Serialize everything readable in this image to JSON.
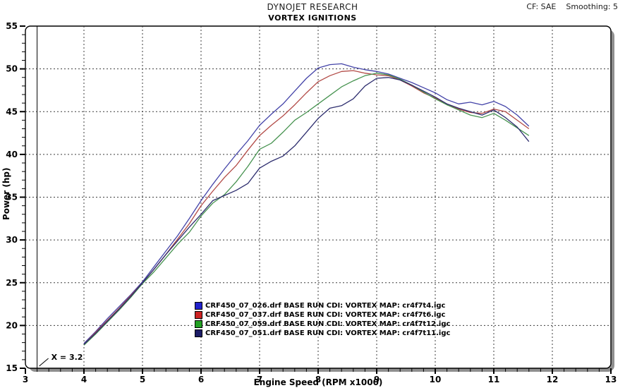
{
  "header": {
    "company": "DYNOJET RESEARCH",
    "title": "VORTEX IGNITIONS",
    "correction": "CF: SAE",
    "smoothing": "Smoothing: 5"
  },
  "chart_data": {
    "type": "line",
    "title": "VORTEX IGNITIONS",
    "xlabel": "Engine Speed (RPM x1000)",
    "ylabel": "Power (hp)",
    "xlim": [
      3,
      13
    ],
    "ylim": [
      15,
      55
    ],
    "x_ticks": [
      3,
      4,
      5,
      6,
      7,
      8,
      9,
      10,
      11,
      12,
      13
    ],
    "y_ticks": [
      15,
      20,
      25,
      30,
      35,
      40,
      45,
      50,
      55
    ],
    "x_minor_step": 0.2,
    "y_minor_step": 1,
    "grid": "dashed",
    "legend_position": "bottom-center-inside",
    "cursor": {
      "x": 3.2,
      "label": "X = 3.2"
    },
    "colors": {
      "grid": "#3c3c3c",
      "frame": "#000000",
      "shadow": "#8f8f8f",
      "cursor": "#000000",
      "background": "#ffffff"
    },
    "series": [
      {
        "name": "CRF450_07_026.drf BASE RUN CDI: VORTEX MAP: cr4f7t4.igc",
        "color": "#4343a8",
        "swatch": "#2222cc",
        "points": [
          [
            4.0,
            17.9
          ],
          [
            4.2,
            19.3
          ],
          [
            4.4,
            20.8
          ],
          [
            4.6,
            22.2
          ],
          [
            4.8,
            23.6
          ],
          [
            5.0,
            25.1
          ],
          [
            5.2,
            26.9
          ],
          [
            5.4,
            28.7
          ],
          [
            5.6,
            30.5
          ],
          [
            5.8,
            32.5
          ],
          [
            6.0,
            34.6
          ],
          [
            6.2,
            36.5
          ],
          [
            6.4,
            38.3
          ],
          [
            6.6,
            40.0
          ],
          [
            6.8,
            41.6
          ],
          [
            7.0,
            43.4
          ],
          [
            7.2,
            44.7
          ],
          [
            7.4,
            45.9
          ],
          [
            7.6,
            47.4
          ],
          [
            7.8,
            48.9
          ],
          [
            8.0,
            50.1
          ],
          [
            8.2,
            50.5
          ],
          [
            8.4,
            50.6
          ],
          [
            8.6,
            50.2
          ],
          [
            8.8,
            49.9
          ],
          [
            9.0,
            49.7
          ],
          [
            9.2,
            49.4
          ],
          [
            9.4,
            48.9
          ],
          [
            9.6,
            48.4
          ],
          [
            9.8,
            47.8
          ],
          [
            10.0,
            47.2
          ],
          [
            10.2,
            46.4
          ],
          [
            10.4,
            45.9
          ],
          [
            10.6,
            46.1
          ],
          [
            10.8,
            45.8
          ],
          [
            11.0,
            46.2
          ],
          [
            11.2,
            45.6
          ],
          [
            11.4,
            44.6
          ],
          [
            11.6,
            43.3
          ]
        ]
      },
      {
        "name": "CRF450_07_037.drf BASE RUN CDI: VORTEX MAP: cr4f7t6.igc",
        "color": "#b24a46",
        "swatch": "#cc2222",
        "points": [
          [
            4.0,
            17.8
          ],
          [
            4.2,
            19.2
          ],
          [
            4.4,
            20.6
          ],
          [
            4.6,
            22.0
          ],
          [
            4.8,
            23.5
          ],
          [
            5.0,
            25.0
          ],
          [
            5.2,
            26.6
          ],
          [
            5.4,
            28.3
          ],
          [
            5.6,
            30.1
          ],
          [
            5.8,
            31.9
          ],
          [
            6.0,
            34.0
          ],
          [
            6.2,
            35.7
          ],
          [
            6.4,
            37.3
          ],
          [
            6.6,
            38.7
          ],
          [
            6.8,
            40.5
          ],
          [
            7.0,
            42.2
          ],
          [
            7.2,
            43.4
          ],
          [
            7.4,
            44.5
          ],
          [
            7.6,
            45.8
          ],
          [
            7.8,
            47.2
          ],
          [
            8.0,
            48.5
          ],
          [
            8.2,
            49.2
          ],
          [
            8.4,
            49.7
          ],
          [
            8.6,
            49.8
          ],
          [
            8.8,
            49.5
          ],
          [
            9.0,
            49.3
          ],
          [
            9.2,
            49.2
          ],
          [
            9.4,
            48.7
          ],
          [
            9.6,
            48.0
          ],
          [
            9.8,
            47.2
          ],
          [
            10.0,
            46.6
          ],
          [
            10.2,
            45.9
          ],
          [
            10.4,
            45.3
          ],
          [
            10.6,
            44.9
          ],
          [
            10.8,
            44.8
          ],
          [
            11.0,
            45.3
          ],
          [
            11.2,
            45.0
          ],
          [
            11.4,
            44.0
          ],
          [
            11.6,
            43.0
          ]
        ]
      },
      {
        "name": "CRF450_07_059.drf BASE RUN CDI: VORTEX MAP: cr4f7t12.igc",
        "color": "#479350",
        "swatch": "#22a022",
        "points": [
          [
            4.0,
            17.7
          ],
          [
            4.2,
            19.0
          ],
          [
            4.4,
            20.4
          ],
          [
            4.6,
            21.8
          ],
          [
            4.8,
            23.3
          ],
          [
            5.0,
            24.9
          ],
          [
            5.2,
            26.3
          ],
          [
            5.4,
            27.9
          ],
          [
            5.6,
            29.5
          ],
          [
            5.8,
            30.9
          ],
          [
            6.0,
            32.8
          ],
          [
            6.2,
            34.3
          ],
          [
            6.4,
            35.3
          ],
          [
            6.6,
            36.8
          ],
          [
            6.8,
            38.6
          ],
          [
            7.0,
            40.6
          ],
          [
            7.2,
            41.3
          ],
          [
            7.4,
            42.6
          ],
          [
            7.6,
            44.0
          ],
          [
            7.8,
            44.9
          ],
          [
            8.0,
            45.9
          ],
          [
            8.2,
            46.9
          ],
          [
            8.4,
            47.9
          ],
          [
            8.6,
            48.6
          ],
          [
            8.8,
            49.2
          ],
          [
            9.0,
            49.5
          ],
          [
            9.2,
            49.3
          ],
          [
            9.4,
            48.8
          ],
          [
            9.6,
            48.1
          ],
          [
            9.8,
            47.3
          ],
          [
            10.0,
            46.5
          ],
          [
            10.2,
            45.8
          ],
          [
            10.4,
            45.2
          ],
          [
            10.6,
            44.6
          ],
          [
            10.8,
            44.3
          ],
          [
            11.0,
            44.8
          ],
          [
            11.2,
            44.0
          ],
          [
            11.4,
            43.1
          ],
          [
            11.6,
            42.2
          ]
        ]
      },
      {
        "name": "CRF450_07_051.drf BASE RUN CDI: VORTEX MAP: cr4f7t11.igc",
        "color": "#2d2d6e",
        "swatch": "#1c1c66",
        "points": [
          [
            4.0,
            17.8
          ],
          [
            4.2,
            19.1
          ],
          [
            4.4,
            20.5
          ],
          [
            4.6,
            21.9
          ],
          [
            4.8,
            23.4
          ],
          [
            5.0,
            25.0
          ],
          [
            5.2,
            26.6
          ],
          [
            5.4,
            28.3
          ],
          [
            5.6,
            29.9
          ],
          [
            5.8,
            31.5
          ],
          [
            6.0,
            33.0
          ],
          [
            6.2,
            34.6
          ],
          [
            6.4,
            35.2
          ],
          [
            6.6,
            35.8
          ],
          [
            6.8,
            36.6
          ],
          [
            7.0,
            38.4
          ],
          [
            7.2,
            39.2
          ],
          [
            7.4,
            39.8
          ],
          [
            7.6,
            41.0
          ],
          [
            7.8,
            42.6
          ],
          [
            8.0,
            44.2
          ],
          [
            8.2,
            45.4
          ],
          [
            8.4,
            45.7
          ],
          [
            8.6,
            46.5
          ],
          [
            8.8,
            48.0
          ],
          [
            9.0,
            48.9
          ],
          [
            9.2,
            49.0
          ],
          [
            9.4,
            48.7
          ],
          [
            9.6,
            48.1
          ],
          [
            9.8,
            47.4
          ],
          [
            10.0,
            46.7
          ],
          [
            10.2,
            45.9
          ],
          [
            10.4,
            45.4
          ],
          [
            10.6,
            45.0
          ],
          [
            10.8,
            44.6
          ],
          [
            11.0,
            45.2
          ],
          [
            11.2,
            44.3
          ],
          [
            11.4,
            43.2
          ],
          [
            11.6,
            41.5
          ]
        ]
      }
    ]
  }
}
